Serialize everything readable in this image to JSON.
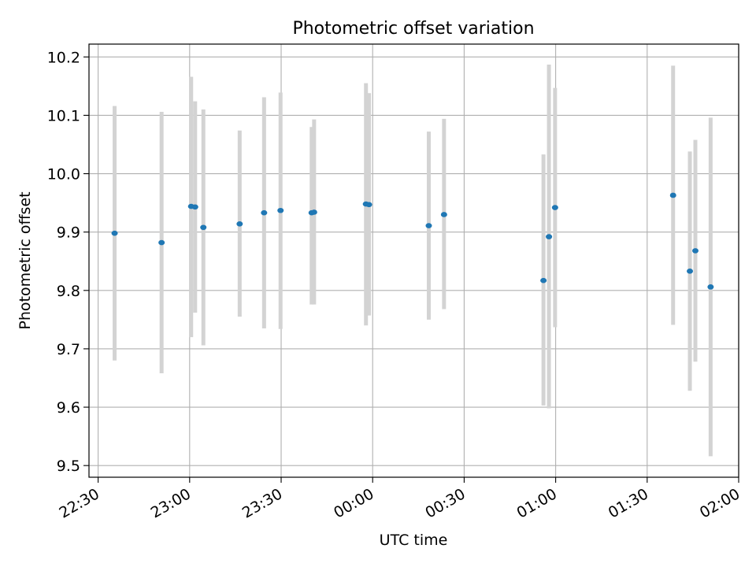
{
  "chart_data": {
    "type": "scatter",
    "title": "Photometric offset variation",
    "xlabel": "UTC time",
    "ylabel": "Photometric offset",
    "x_axis_kind": "time",
    "xlim": [
      "22:27",
      "02:00"
    ],
    "ylim": [
      9.48,
      10.222
    ],
    "grid": true,
    "x_ticks": [
      "22:30",
      "23:00",
      "23:30",
      "00:00",
      "00:30",
      "01:00",
      "01:30",
      "02:00"
    ],
    "y_ticks": [
      "9.5",
      "9.6",
      "9.7",
      "9.8",
      "9.9",
      "10.0",
      "10.1",
      "10.2"
    ],
    "colors": {
      "point": "#1f77b4",
      "errorbar": "#d3d3d3",
      "grid": "#b0b0b0"
    },
    "series": [
      {
        "points": [
          {
            "x": "22:35:24",
            "y": 9.898,
            "ylow": 9.68,
            "yhigh": 10.116
          },
          {
            "x": "22:50:48",
            "y": 9.882,
            "ylow": 9.658,
            "yhigh": 10.106
          },
          {
            "x": "23:00:30",
            "y": 9.944,
            "ylow": 9.72,
            "yhigh": 10.166
          },
          {
            "x": "23:01:48",
            "y": 9.943,
            "ylow": 9.762,
            "yhigh": 10.124
          },
          {
            "x": "23:04:30",
            "y": 9.908,
            "ylow": 9.706,
            "yhigh": 10.11
          },
          {
            "x": "23:16:24",
            "y": 9.914,
            "ylow": 9.755,
            "yhigh": 10.074
          },
          {
            "x": "23:24:24",
            "y": 9.933,
            "ylow": 9.735,
            "yhigh": 10.131
          },
          {
            "x": "23:29:48",
            "y": 9.937,
            "ylow": 9.734,
            "yhigh": 10.139
          },
          {
            "x": "23:40:00",
            "y": 9.933,
            "ylow": 9.776,
            "yhigh": 10.08
          },
          {
            "x": "23:40:48",
            "y": 9.934,
            "ylow": 9.776,
            "yhigh": 10.093
          },
          {
            "x": "23:57:48",
            "y": 9.948,
            "ylow": 9.74,
            "yhigh": 10.155
          },
          {
            "x": "23:58:48",
            "y": 9.947,
            "ylow": 9.757,
            "yhigh": 10.138
          },
          {
            "x": "00:18:24",
            "y": 9.911,
            "ylow": 9.75,
            "yhigh": 10.072
          },
          {
            "x": "00:23:24",
            "y": 9.93,
            "ylow": 9.768,
            "yhigh": 10.094
          },
          {
            "x": "00:56:00",
            "y": 9.817,
            "ylow": 9.603,
            "yhigh": 10.033
          },
          {
            "x": "00:57:48",
            "y": 9.892,
            "ylow": 9.598,
            "yhigh": 10.187
          },
          {
            "x": "00:59:48",
            "y": 9.942,
            "ylow": 9.737,
            "yhigh": 10.147
          },
          {
            "x": "01:38:30",
            "y": 9.963,
            "ylow": 9.741,
            "yhigh": 10.185
          },
          {
            "x": "01:44:00",
            "y": 9.833,
            "ylow": 9.628,
            "yhigh": 10.038
          },
          {
            "x": "01:45:48",
            "y": 9.868,
            "ylow": 9.678,
            "yhigh": 10.058
          },
          {
            "x": "01:50:48",
            "y": 9.806,
            "ylow": 9.516,
            "yhigh": 10.096
          }
        ]
      }
    ]
  }
}
